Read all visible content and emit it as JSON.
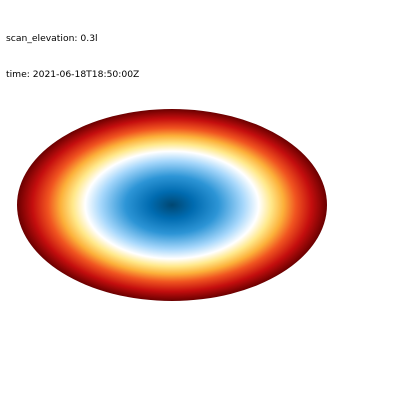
{
  "header": {
    "scan_elevation": "scan_elevation: 0.3l",
    "time": "time: 2021-06-18T18:50:00Z"
  },
  "chart_data": {
    "type": "heatmap",
    "projection": "ellipse",
    "title": "",
    "xlabel": "",
    "ylabel": "",
    "grid": false,
    "legend": "none",
    "colormap": [
      {
        "pos": 0.0,
        "color": "#004772"
      },
      {
        "pos": 0.14,
        "color": "#006bb0"
      },
      {
        "pos": 0.3,
        "color": "#2d95d6"
      },
      {
        "pos": 0.46,
        "color": "#a6d7fb"
      },
      {
        "pos": 0.56,
        "color": "#ffffff"
      },
      {
        "pos": 0.64,
        "color": "#ffe88a"
      },
      {
        "pos": 0.72,
        "color": "#fcb03a"
      },
      {
        "pos": 0.8,
        "color": "#f05420"
      },
      {
        "pos": 0.9,
        "color": "#c40e0e"
      },
      {
        "pos": 1.0,
        "color": "#6a0000"
      }
    ]
  }
}
